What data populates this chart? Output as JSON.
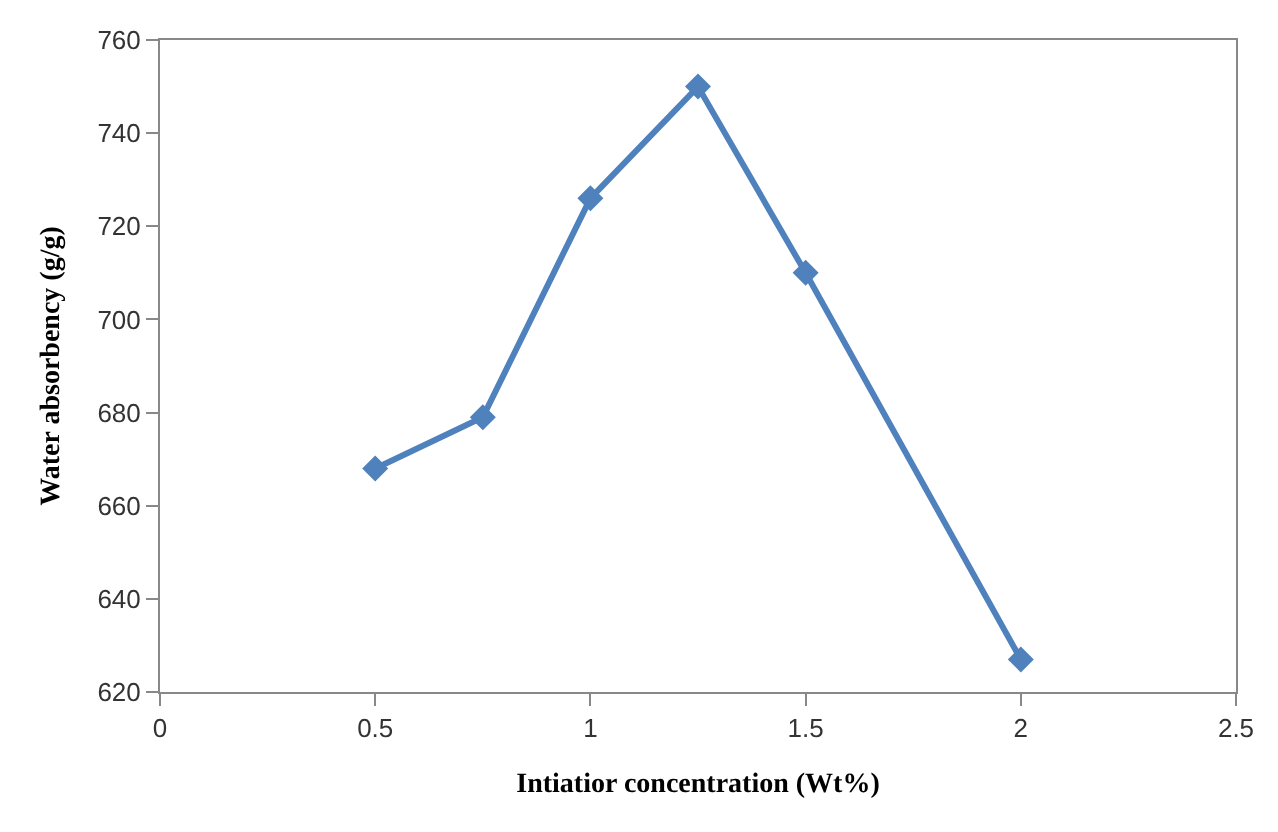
{
  "chart_data": {
    "type": "line",
    "xlabel": "Intiatior concentration (Wt%)",
    "ylabel": "Water absorbency (g/g)",
    "x": [
      0.5,
      0.75,
      1,
      1.25,
      1.5,
      2
    ],
    "series": [
      {
        "color": "#4f81bd",
        "values": [
          668,
          679,
          726,
          750,
          710,
          627
        ]
      }
    ],
    "xlim": [
      0,
      2.5
    ],
    "xticks": [
      0,
      0.5,
      1,
      1.5,
      2,
      2.5
    ],
    "ylim": [
      620,
      760
    ],
    "yticks": [
      620,
      640,
      660,
      680,
      700,
      720,
      740,
      760
    ],
    "legend": false,
    "marker": "diamond",
    "line_style": "solid"
  }
}
